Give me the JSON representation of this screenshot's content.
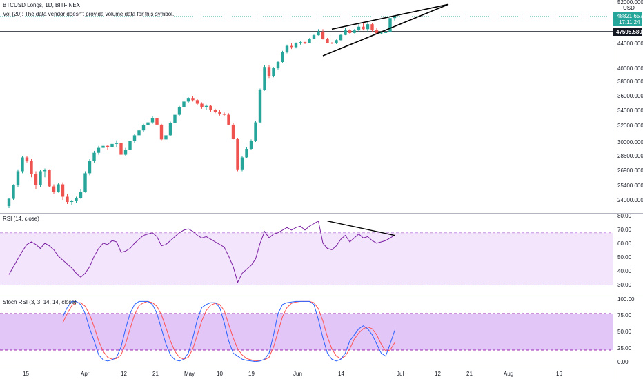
{
  "header": {
    "symbol_line": "BTCUSD Longs, 1D, BITFINEX",
    "volume_note": "Vol (20): The data vendor doesn't provide volume data for this symbol."
  },
  "price_scale": {
    "currency": "USD",
    "last_price": "48821.6570",
    "countdown": "17:11:24",
    "level_line_price": "47595.5801",
    "tick_labels": [
      "52000.0000",
      "44000.0000",
      "40000.0000",
      "38000.0000",
      "36000.0000",
      "34000.0000",
      "32000.0000",
      "30000.0000",
      "28600.0000",
      "26900.0000",
      "25400.0000",
      "24000.0000"
    ]
  },
  "rsi_pane": {
    "title": "RSI (14, close)",
    "tick_labels": [
      "80.00",
      "70.00",
      "60.00",
      "50.00",
      "40.00",
      "30.00"
    ]
  },
  "stoch_pane": {
    "title": "Stoch RSI (3, 3, 14, 14, close)",
    "tick_labels": [
      "100.00",
      "75.00",
      "50.00",
      "25.00",
      "0.00"
    ]
  },
  "time_axis": {
    "labels": [
      "15",
      "Apr",
      "12",
      "21",
      "May",
      "10",
      "19",
      "Jun",
      "14",
      "Jul",
      "12",
      "21",
      "Aug",
      "16"
    ]
  },
  "colors": {
    "up": "#26a69a",
    "down": "#ef5350",
    "rsi_line": "#7b1fa2",
    "rsi_band": "#f3e5fc",
    "stoch_band": "#e1c6f7",
    "stoch_k": "#2962ff",
    "stoch_d": "#ff5252",
    "last_price_badge": "#26a69a",
    "level_badge": "#131722"
  },
  "chart_data": {
    "type": "candlestick",
    "timeframe": "1D",
    "candles": [
      [
        23400,
        24200,
        23200,
        24100
      ],
      [
        24100,
        25500,
        24000,
        25400
      ],
      [
        25400,
        27000,
        25200,
        26800
      ],
      [
        26800,
        28600,
        26600,
        28400
      ],
      [
        28400,
        28600,
        27800,
        28000
      ],
      [
        28000,
        28200,
        26200,
        26500
      ],
      [
        26500,
        26800,
        25000,
        25400
      ],
      [
        25400,
        26900,
        25200,
        26800
      ],
      [
        26800,
        27100,
        26200,
        26900
      ],
      [
        26900,
        27000,
        25200,
        25300
      ],
      [
        25300,
        25500,
        24600,
        24800
      ],
      [
        24800,
        25600,
        24700,
        25500
      ],
      [
        25500,
        25700,
        24000,
        24300
      ],
      [
        24300,
        24600,
        23600,
        23800
      ],
      [
        23800,
        24000,
        23500,
        23900
      ],
      [
        23900,
        24300,
        23700,
        24200
      ],
      [
        24200,
        25000,
        24100,
        24800
      ],
      [
        24800,
        26800,
        24700,
        26600
      ],
      [
        26600,
        28200,
        26400,
        28000
      ],
      [
        28000,
        29100,
        27800,
        28900
      ],
      [
        28900,
        29600,
        28700,
        29400
      ],
      [
        29400,
        29800,
        29000,
        29600
      ],
      [
        29600,
        29700,
        29200,
        29500
      ],
      [
        29500,
        30000,
        29400,
        29800
      ],
      [
        29800,
        30200,
        29500,
        29900
      ],
      [
        29900,
        30000,
        28600,
        28700
      ],
      [
        28700,
        29400,
        28600,
        29200
      ],
      [
        29200,
        30200,
        29100,
        30100
      ],
      [
        30100,
        31000,
        29900,
        30800
      ],
      [
        30800,
        31600,
        30600,
        31400
      ],
      [
        31400,
        32200,
        31200,
        32000
      ],
      [
        32000,
        32600,
        31800,
        32400
      ],
      [
        32400,
        33200,
        32200,
        33000
      ],
      [
        33000,
        33100,
        31900,
        32100
      ],
      [
        32100,
        32200,
        30200,
        30300
      ],
      [
        30300,
        31000,
        30100,
        30800
      ],
      [
        30800,
        32500,
        30700,
        32300
      ],
      [
        32300,
        33600,
        32200,
        33400
      ],
      [
        33400,
        34600,
        33200,
        34400
      ],
      [
        34400,
        35400,
        34200,
        35200
      ],
      [
        35200,
        35800,
        35000,
        35700
      ],
      [
        35700,
        36000,
        35200,
        35400
      ],
      [
        35400,
        35600,
        34700,
        34900
      ],
      [
        34900,
        35100,
        34200,
        34400
      ],
      [
        34400,
        34800,
        34100,
        34600
      ],
      [
        34600,
        34700,
        33800,
        34000
      ],
      [
        34000,
        34200,
        33600,
        33800
      ],
      [
        33800,
        34000,
        33300,
        33500
      ],
      [
        33500,
        33700,
        33200,
        33400
      ],
      [
        33400,
        33600,
        32000,
        32100
      ],
      [
        32100,
        32300,
        30300,
        30400
      ],
      [
        30400,
        30500,
        26800,
        27000
      ],
      [
        27000,
        28600,
        26800,
        28400
      ],
      [
        28400,
        29500,
        28300,
        29300
      ],
      [
        29300,
        30300,
        29200,
        30100
      ],
      [
        30100,
        32600,
        30000,
        32400
      ],
      [
        32400,
        37000,
        32300,
        36800
      ],
      [
        36800,
        40500,
        36700,
        40200
      ],
      [
        40200,
        40500,
        38500,
        38800
      ],
      [
        38800,
        40200,
        38600,
        40000
      ],
      [
        40000,
        41200,
        39800,
        41000
      ],
      [
        41000,
        42800,
        40900,
        42600
      ],
      [
        42600,
        43800,
        42400,
        43600
      ],
      [
        43600,
        44000,
        43100,
        43400
      ],
      [
        43400,
        44300,
        43200,
        44100
      ],
      [
        44100,
        44600,
        43800,
        44400
      ],
      [
        44400,
        44500,
        43900,
        44100
      ],
      [
        44100,
        45600,
        44000,
        45400
      ],
      [
        45400,
        46700,
        45300,
        46500
      ],
      [
        46500,
        47800,
        46400,
        47600
      ],
      [
        47600,
        47800,
        45200,
        45400
      ],
      [
        45400,
        45700,
        44000,
        44200
      ],
      [
        44200,
        44400,
        43900,
        44100
      ],
      [
        44100,
        45200,
        43900,
        45000
      ],
      [
        45000,
        46800,
        44900,
        46600
      ],
      [
        46600,
        47900,
        46500,
        47700
      ],
      [
        47700,
        47800,
        47000,
        47200
      ],
      [
        47200,
        47800,
        47100,
        47700
      ],
      [
        47700,
        48200,
        47500,
        48000
      ],
      [
        48000,
        48300,
        47700,
        47800
      ],
      [
        47800,
        48400,
        47600,
        48200
      ],
      [
        48200,
        48300,
        47600,
        47700
      ],
      [
        47700,
        47900,
        47000,
        47100
      ],
      [
        47100,
        47400,
        46900,
        47300
      ],
      [
        47300,
        47500,
        47200,
        47400
      ],
      [
        47400,
        48800,
        47300,
        48700
      ],
      [
        48700,
        49000,
        48500,
        48822
      ]
    ],
    "rsi": [
      38,
      44,
      50,
      56,
      61,
      63,
      61,
      58,
      62,
      60,
      57,
      52,
      49,
      46,
      43,
      39,
      36,
      39,
      44,
      52,
      58,
      62,
      61,
      64,
      63,
      55,
      56,
      58,
      62,
      65,
      68,
      69,
      70,
      67,
      60,
      61,
      64,
      67,
      70,
      72,
      73,
      71,
      68,
      66,
      67,
      65,
      63,
      61,
      59,
      52,
      44,
      32,
      39,
      42,
      45,
      50,
      62,
      71,
      66,
      69,
      70,
      72,
      74,
      72,
      74,
      75,
      72,
      75,
      77,
      79,
      62,
      58,
      57,
      60,
      65,
      68,
      63,
      66,
      69,
      66,
      67,
      64,
      62,
      63,
      64,
      66,
      68
    ],
    "stoch_k": [
      75,
      90,
      100,
      100,
      95,
      80,
      55,
      35,
      12,
      4,
      2,
      4,
      8,
      25,
      55,
      80,
      95,
      100,
      100,
      100,
      95,
      80,
      55,
      30,
      12,
      4,
      2,
      5,
      15,
      40,
      70,
      90,
      95,
      98,
      98,
      90,
      65,
      35,
      15,
      10,
      5,
      3,
      2,
      1,
      2,
      5,
      15,
      45,
      80,
      95,
      98,
      99,
      100,
      100,
      100,
      100,
      95,
      70,
      40,
      15,
      5,
      2,
      5,
      15,
      35,
      45,
      55,
      60,
      55,
      45,
      30,
      15,
      10,
      30,
      52
    ],
    "stoch_d": [
      65,
      80,
      93,
      98,
      98,
      92,
      78,
      58,
      35,
      18,
      8,
      5,
      6,
      12,
      30,
      55,
      78,
      93,
      98,
      100,
      98,
      92,
      78,
      57,
      35,
      18,
      8,
      5,
      8,
      22,
      45,
      68,
      85,
      94,
      97,
      95,
      85,
      62,
      40,
      22,
      12,
      6,
      4,
      2,
      3,
      4,
      8,
      25,
      50,
      75,
      90,
      97,
      99,
      100,
      100,
      100,
      98,
      88,
      68,
      42,
      22,
      10,
      6,
      10,
      22,
      38,
      48,
      55,
      58,
      55,
      45,
      30,
      18,
      20,
      32
    ],
    "ylim": [
      23000,
      52000
    ],
    "rsi_ylim": [
      25,
      82
    ],
    "stoch_ylim": [
      -5,
      105
    ],
    "rsi_levels": [
      70,
      30
    ],
    "stoch_levels": [
      80,
      20
    ],
    "annotations": {
      "price_wedge": [
        {
          "from": [
            72,
            47800
          ],
          "to": [
            98,
            51500
          ]
        },
        {
          "from": [
            70,
            42000
          ],
          "to": [
            98,
            51500
          ]
        }
      ],
      "rsi_trendline": {
        "from": [
          71,
          79
        ],
        "to": [
          86,
          68
        ]
      },
      "level_line": 47595.5801
    }
  }
}
